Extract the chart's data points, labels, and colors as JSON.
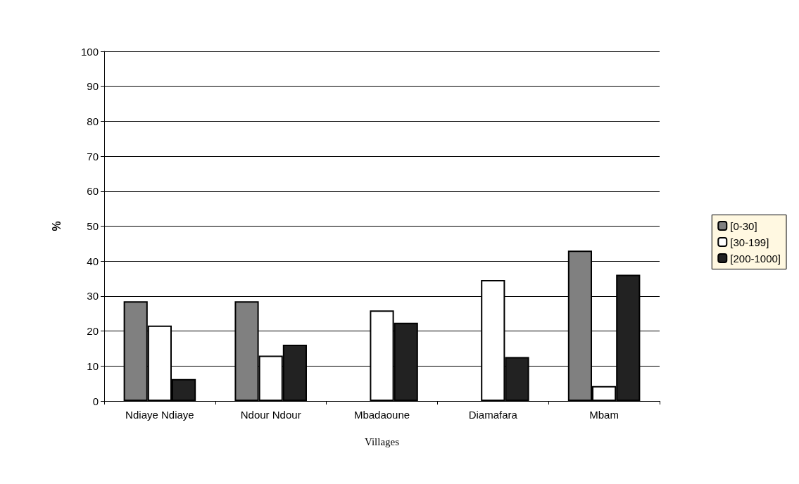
{
  "chart_data": {
    "type": "bar",
    "xlabel": "Villages",
    "ylabel": "%",
    "categories": [
      "Ndiaye Ndiaye",
      "Ndour Ndour",
      "Mbadaoune",
      "Diamafara",
      "Mbam"
    ],
    "series": [
      {
        "name": "[0-30]",
        "color": "#808080",
        "values": [
          28.5,
          28.5,
          0,
          0,
          43
        ]
      },
      {
        "name": "[30-199]",
        "color": "#ffffff",
        "values": [
          21.6,
          13,
          25.9,
          34.6,
          4.3
        ]
      },
      {
        "name": "[200-1000]",
        "color": "#222222",
        "values": [
          6.3,
          16.1,
          22.4,
          12.6,
          36.1
        ]
      }
    ],
    "ylim": [
      0,
      100
    ],
    "yticks": [
      0,
      10,
      20,
      30,
      40,
      50,
      60,
      70,
      80,
      90,
      100
    ],
    "grid": "y",
    "legend": "right"
  }
}
